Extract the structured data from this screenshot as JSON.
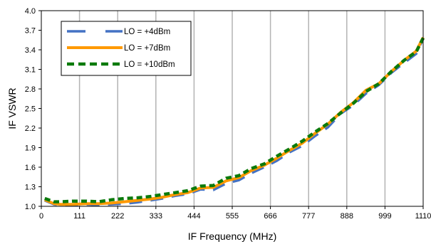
{
  "chart_data": {
    "type": "line",
    "title": "",
    "xlabel": "IF Frequency (MHz)",
    "ylabel": "IF VSWR",
    "xlim": [
      0,
      1110
    ],
    "ylim": [
      1.0,
      4.0
    ],
    "xticks": [
      0,
      111,
      222,
      333,
      444,
      555,
      666,
      777,
      888,
      999,
      1110
    ],
    "yticks": [
      1.0,
      1.3,
      1.6,
      1.9,
      2.2,
      2.5,
      2.8,
      3.1,
      3.4,
      3.7,
      4.0
    ],
    "x_tick_labels": [
      "0",
      "111",
      "222",
      "333",
      "444",
      "555",
      "666",
      "777",
      "888",
      "999",
      "1110"
    ],
    "y_tick_labels": [
      "1.0",
      "1.3",
      "1.6",
      "1.9",
      "2.2",
      "2.5",
      "2.8",
      "3.1",
      "3.4",
      "3.7",
      "4.0"
    ],
    "grid": {
      "vertical": true,
      "horizontal": false
    },
    "legend_position": "top-left",
    "series": [
      {
        "name": "LO = +4dBm",
        "color": "#4472C4",
        "dash": "long-dash",
        "x": [
          10,
          37,
          56,
          93,
          130,
          167,
          204,
          241,
          278,
          315,
          352,
          389,
          426,
          463,
          500,
          537,
          574,
          611,
          648,
          685,
          722,
          759,
          796,
          833,
          870,
          907,
          944,
          981,
          1018,
          1055,
          1090,
          1110
        ],
        "y": [
          1.09,
          1.03,
          1.02,
          1.02,
          1.03,
          1.02,
          1.03,
          1.04,
          1.06,
          1.09,
          1.12,
          1.16,
          1.19,
          1.26,
          1.25,
          1.35,
          1.4,
          1.51,
          1.6,
          1.7,
          1.83,
          1.93,
          2.08,
          2.21,
          2.42,
          2.55,
          2.73,
          2.86,
          3.05,
          3.2,
          3.34,
          3.57
        ]
      },
      {
        "name": "LO = +7dBm",
        "color": "#FF9900",
        "dash": "solid",
        "x": [
          10,
          37,
          56,
          93,
          130,
          167,
          204,
          241,
          278,
          315,
          352,
          389,
          426,
          463,
          500,
          537,
          574,
          611,
          648,
          685,
          722,
          759,
          796,
          833,
          870,
          907,
          944,
          981,
          1018,
          1055,
          1090,
          1110
        ],
        "y": [
          1.1,
          1.04,
          1.03,
          1.03,
          1.04,
          1.04,
          1.05,
          1.07,
          1.09,
          1.11,
          1.14,
          1.18,
          1.21,
          1.28,
          1.29,
          1.39,
          1.44,
          1.55,
          1.63,
          1.74,
          1.86,
          1.97,
          2.12,
          2.26,
          2.44,
          2.59,
          2.78,
          2.88,
          3.07,
          3.24,
          3.38,
          3.59
        ]
      },
      {
        "name": "LO = +10dBm",
        "color": "#0B7A0B",
        "dash": "dash",
        "x": [
          10,
          37,
          56,
          93,
          130,
          167,
          204,
          241,
          278,
          315,
          352,
          389,
          426,
          463,
          500,
          537,
          574,
          611,
          648,
          685,
          722,
          759,
          796,
          833,
          870,
          907,
          944,
          981,
          1018,
          1055,
          1090,
          1110
        ],
        "y": [
          1.12,
          1.07,
          1.07,
          1.08,
          1.08,
          1.07,
          1.1,
          1.12,
          1.13,
          1.15,
          1.18,
          1.21,
          1.24,
          1.31,
          1.32,
          1.43,
          1.47,
          1.58,
          1.65,
          1.77,
          1.88,
          2.0,
          2.14,
          2.27,
          2.43,
          2.58,
          2.76,
          2.88,
          3.07,
          3.24,
          3.37,
          3.58
        ]
      }
    ]
  }
}
